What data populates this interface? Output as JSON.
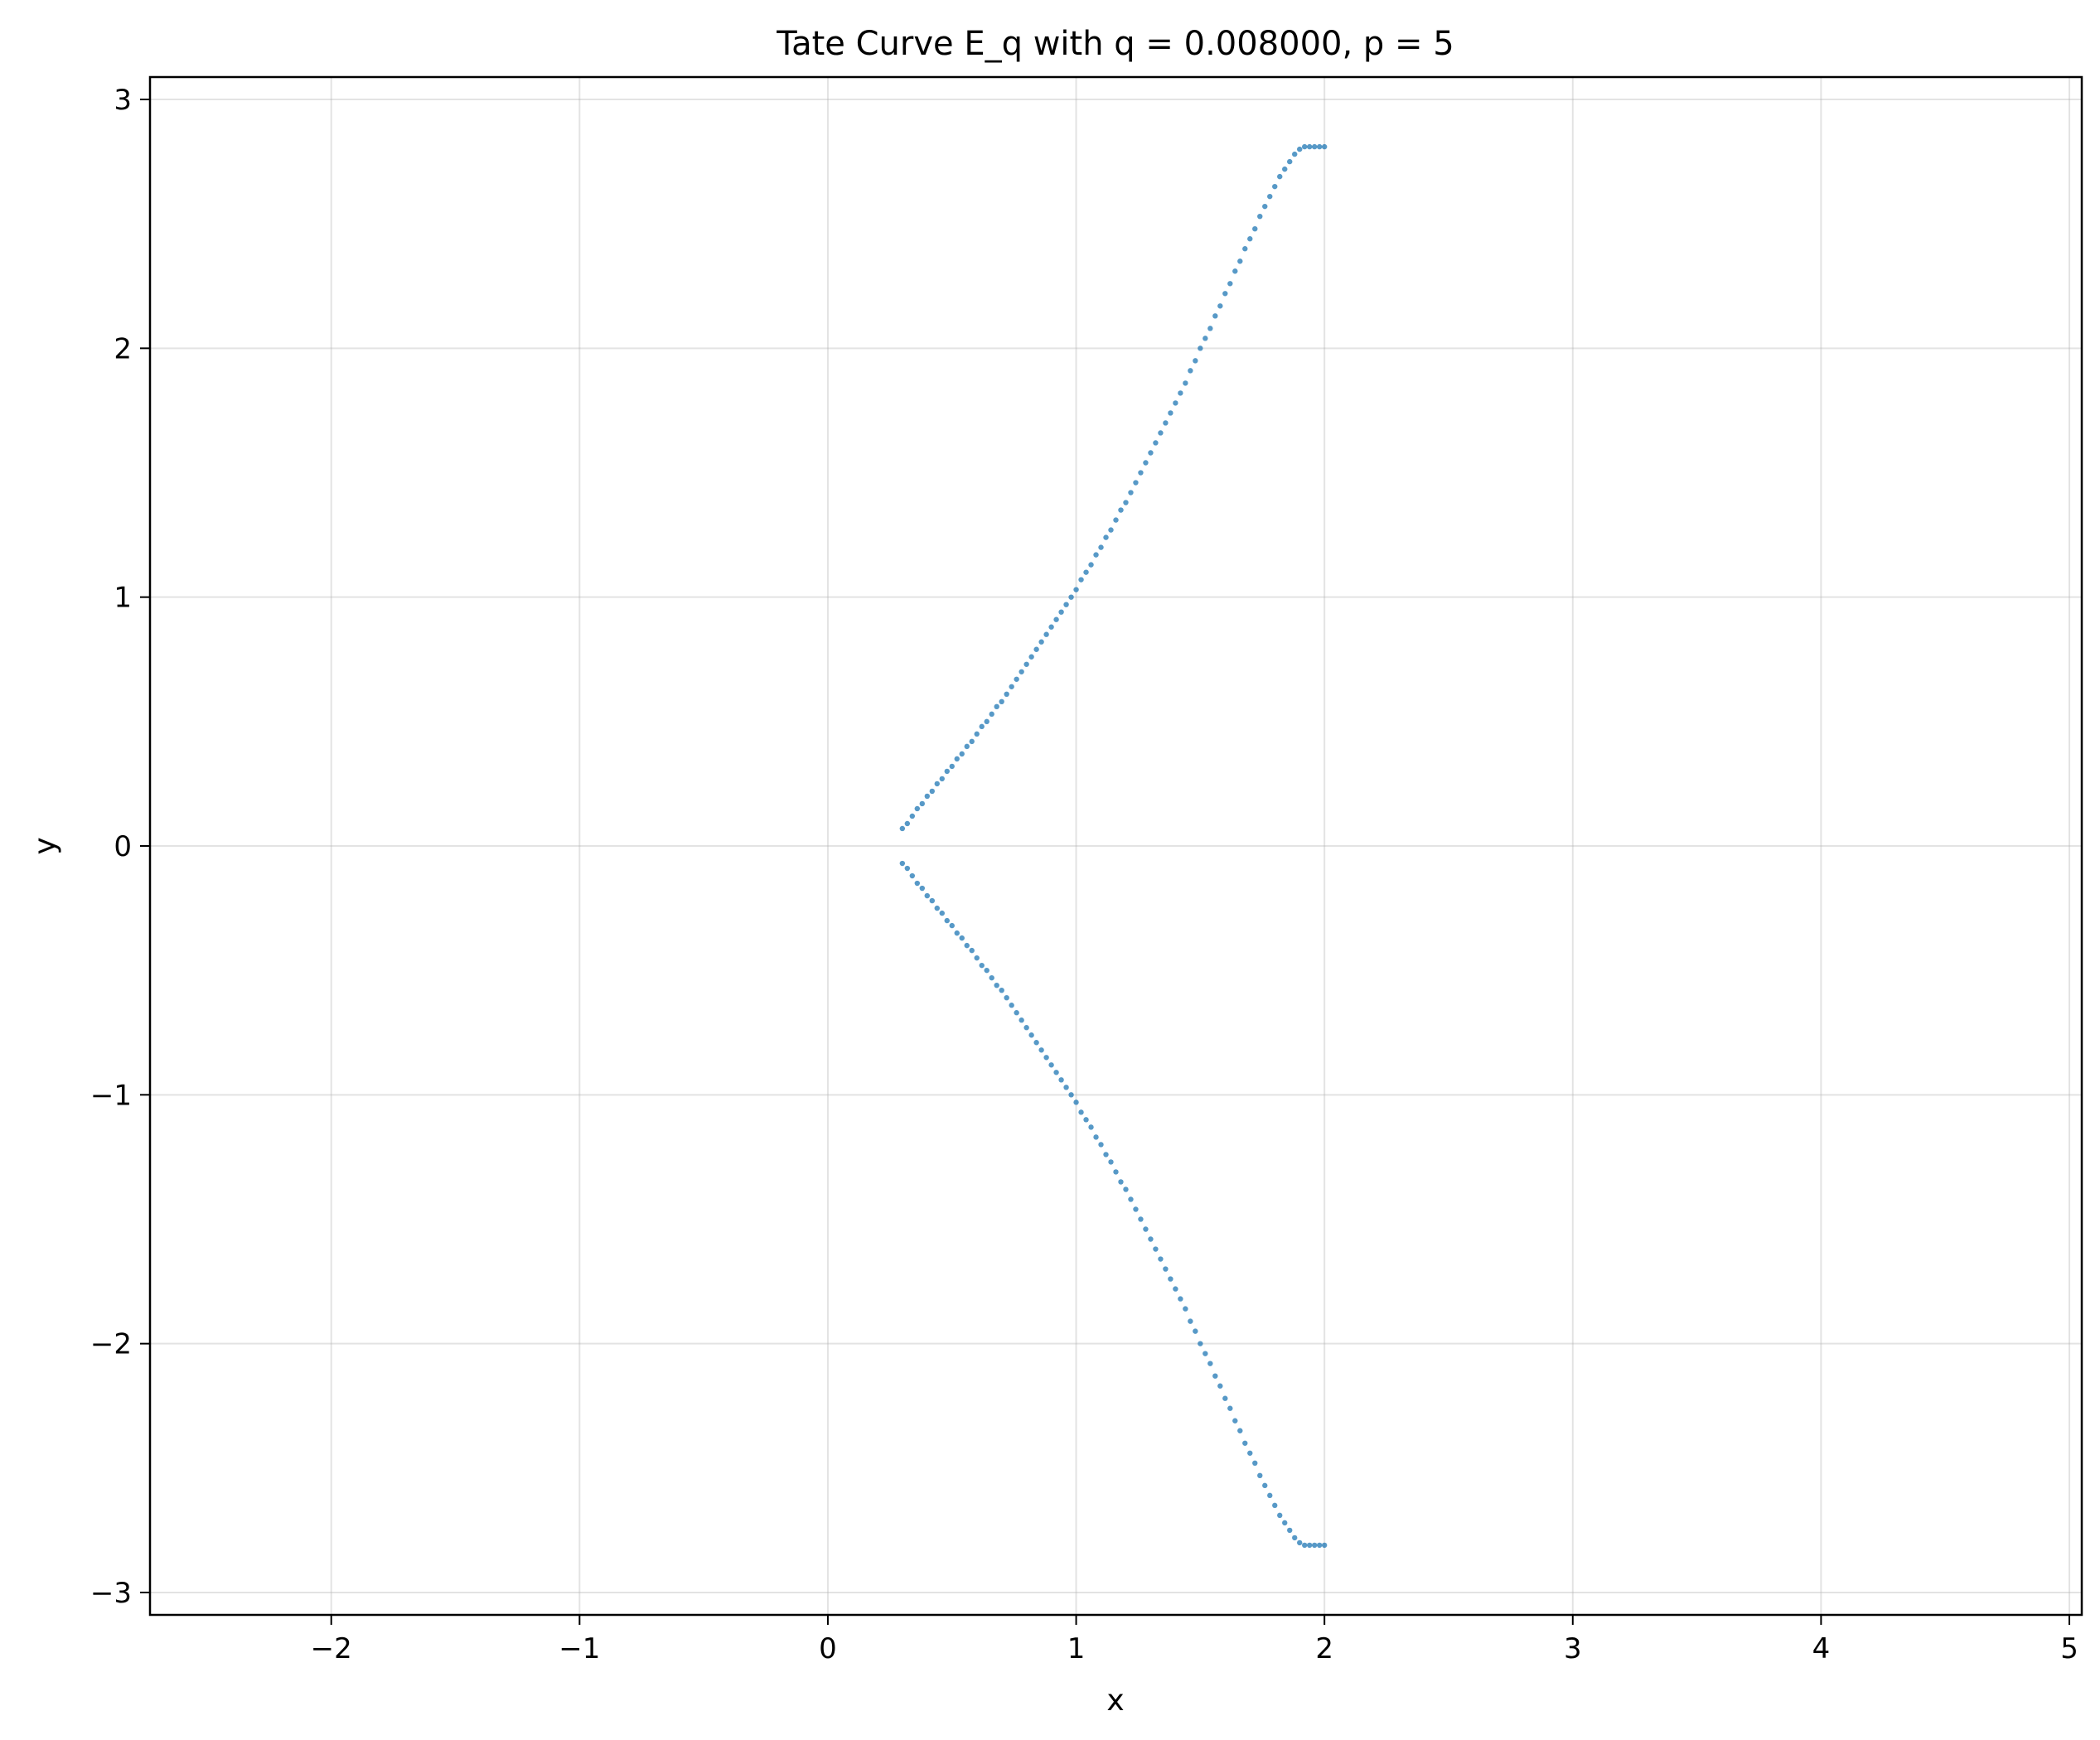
{
  "chart_data": {
    "type": "scatter",
    "title": "Tate Curve E_q with q = 0.008000, p = 5",
    "xlabel": "x",
    "ylabel": "y",
    "xlim": [
      -2.73,
      5.05
    ],
    "ylim": [
      -3.09,
      3.09
    ],
    "xticks": [
      -2,
      -1,
      0,
      1,
      2,
      3,
      4,
      5
    ],
    "xtick_labels": [
      "−2",
      "−1",
      "0",
      "1",
      "2",
      "3",
      "4",
      "5"
    ],
    "yticks": [
      -3,
      -2,
      -1,
      0,
      1,
      2,
      3
    ],
    "ytick_labels": [
      "−3",
      "−2",
      "−1",
      "0",
      "1",
      "2",
      "3"
    ],
    "grid": true,
    "marker_color": "#1f77b4",
    "series": [
      {
        "x": [
          0.3,
          0.32,
          0.34,
          0.36,
          0.38,
          0.4,
          0.42,
          0.44,
          0.46,
          0.48,
          0.5,
          0.52,
          0.54,
          0.56,
          0.58,
          0.6,
          0.62,
          0.64,
          0.66,
          0.68,
          0.7,
          0.72,
          0.74,
          0.76,
          0.78,
          0.8,
          0.82,
          0.84,
          0.86,
          0.88,
          0.9,
          0.92,
          0.94,
          0.96,
          0.98,
          1.0,
          1.02,
          1.04,
          1.06,
          1.08,
          1.1,
          1.12,
          1.14,
          1.16,
          1.18,
          1.2,
          1.22,
          1.24,
          1.26,
          1.28,
          1.3,
          1.32,
          1.34,
          1.36,
          1.38,
          1.4,
          1.42,
          1.44,
          1.46,
          1.48,
          1.5,
          1.52,
          1.54,
          1.56,
          1.58,
          1.6,
          1.62,
          1.64,
          1.66,
          1.68,
          1.7,
          1.72,
          1.74,
          1.76,
          1.78,
          1.8,
          1.82,
          1.84,
          1.86,
          1.88,
          1.9,
          1.92,
          1.94,
          1.96,
          1.98,
          2.0,
          0.3,
          0.32,
          0.34,
          0.36,
          0.38,
          0.4,
          0.42,
          0.44,
          0.46,
          0.48,
          0.5,
          0.52,
          0.54,
          0.56,
          0.58,
          0.6,
          0.62,
          0.64,
          0.66,
          0.68,
          0.7,
          0.72,
          0.74,
          0.76,
          0.78,
          0.8,
          0.82,
          0.84,
          0.86,
          0.88,
          0.9,
          0.92,
          0.94,
          0.96,
          0.98,
          1.0,
          1.02,
          1.04,
          1.06,
          1.08,
          1.1,
          1.12,
          1.14,
          1.16,
          1.18,
          1.2,
          1.22,
          1.24,
          1.26,
          1.28,
          1.3,
          1.32,
          1.34,
          1.36,
          1.38,
          1.4,
          1.42,
          1.44,
          1.46,
          1.48,
          1.5,
          1.52,
          1.54,
          1.56,
          1.58,
          1.6,
          1.62,
          1.64,
          1.66,
          1.68,
          1.7,
          1.72,
          1.74,
          1.76,
          1.78,
          1.8,
          1.82,
          1.84,
          1.86,
          1.88,
          1.9,
          1.92,
          1.94,
          1.96,
          1.98,
          2.0
        ],
        "y": [
          0.07,
          0.09,
          0.12,
          0.15,
          0.17,
          0.2,
          0.22,
          0.25,
          0.27,
          0.3,
          0.32,
          0.35,
          0.37,
          0.4,
          0.42,
          0.45,
          0.48,
          0.5,
          0.53,
          0.56,
          0.58,
          0.61,
          0.64,
          0.67,
          0.7,
          0.73,
          0.76,
          0.79,
          0.82,
          0.85,
          0.88,
          0.91,
          0.94,
          0.97,
          1.0,
          1.03,
          1.07,
          1.1,
          1.13,
          1.17,
          1.2,
          1.24,
          1.27,
          1.31,
          1.35,
          1.38,
          1.42,
          1.46,
          1.5,
          1.54,
          1.58,
          1.62,
          1.66,
          1.7,
          1.74,
          1.78,
          1.82,
          1.86,
          1.91,
          1.95,
          2.0,
          2.04,
          2.08,
          2.13,
          2.17,
          2.22,
          2.26,
          2.31,
          2.35,
          2.4,
          2.44,
          2.48,
          2.53,
          2.57,
          2.61,
          2.65,
          2.69,
          2.72,
          2.75,
          2.78,
          2.8,
          2.81,
          2.81,
          2.81,
          2.81,
          2.81,
          -0.07,
          -0.09,
          -0.12,
          -0.15,
          -0.17,
          -0.2,
          -0.22,
          -0.25,
          -0.27,
          -0.3,
          -0.32,
          -0.35,
          -0.37,
          -0.4,
          -0.42,
          -0.45,
          -0.48,
          -0.5,
          -0.53,
          -0.56,
          -0.58,
          -0.61,
          -0.64,
          -0.67,
          -0.7,
          -0.73,
          -0.76,
          -0.79,
          -0.82,
          -0.85,
          -0.88,
          -0.91,
          -0.94,
          -0.97,
          -1.0,
          -1.03,
          -1.07,
          -1.1,
          -1.13,
          -1.17,
          -1.2,
          -1.24,
          -1.27,
          -1.31,
          -1.35,
          -1.38,
          -1.42,
          -1.46,
          -1.5,
          -1.54,
          -1.58,
          -1.62,
          -1.66,
          -1.7,
          -1.74,
          -1.78,
          -1.82,
          -1.86,
          -1.91,
          -1.95,
          -2.0,
          -2.04,
          -2.08,
          -2.13,
          -2.17,
          -2.22,
          -2.26,
          -2.31,
          -2.35,
          -2.4,
          -2.44,
          -2.48,
          -2.53,
          -2.57,
          -2.61,
          -2.65,
          -2.69,
          -2.72,
          -2.75,
          -2.78,
          -2.8,
          -2.81,
          -2.81,
          -2.81,
          -2.81,
          -2.81
        ]
      }
    ]
  }
}
